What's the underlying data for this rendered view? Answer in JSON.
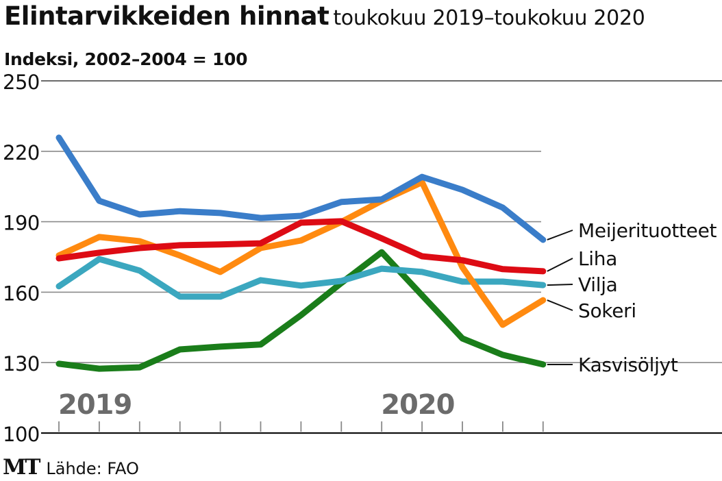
{
  "header": {
    "title": "Elintarvikkeiden hinnat",
    "subtitle": "toukokuu 2019–toukokuu 2020",
    "ylabel": "Indeksi, 2002–2004 = 100"
  },
  "footer": {
    "logo": "MT",
    "source": "Lähde: FAO"
  },
  "chart_data": {
    "type": "line",
    "title": "Elintarvikkeiden hinnat",
    "subtitle": "toukokuu 2019–toukokuu 2020",
    "xlabel": "",
    "ylabel": "Indeksi, 2002–2004 = 100",
    "x": [
      "2019-05",
      "2019-06",
      "2019-07",
      "2019-08",
      "2019-09",
      "2019-10",
      "2019-11",
      "2019-12",
      "2020-01",
      "2020-02",
      "2020-03",
      "2020-04",
      "2020-05"
    ],
    "year_labels": [
      {
        "label": "2019",
        "at": "2019-05"
      },
      {
        "label": "2020",
        "at": "2020-01"
      }
    ],
    "ylim": [
      100,
      250
    ],
    "yticks": [
      100,
      130,
      160,
      190,
      220,
      250
    ],
    "grid": true,
    "legend_placement": "right (labels at line ends)",
    "series": [
      {
        "name": "Meijerituotteet",
        "color": "#3a7dc9",
        "values": [
          225.8,
          198.9,
          193.1,
          194.5,
          193.7,
          191.6,
          192.5,
          198.4,
          199.5,
          209.1,
          203.6,
          196.0,
          182.3
        ]
      },
      {
        "name": "Liha",
        "color": "#dd0b14",
        "values": [
          174.4,
          176.8,
          178.8,
          180.0,
          180.3,
          180.8,
          189.6,
          190.2,
          182.9,
          175.3,
          173.6,
          169.8,
          168.9
        ]
      },
      {
        "name": "Vilja",
        "color": "#3ba7bf",
        "values": [
          162.5,
          174.1,
          169.2,
          158.1,
          158.1,
          165.1,
          162.8,
          164.8,
          170.0,
          168.6,
          164.5,
          164.5,
          163.0
        ]
      },
      {
        "name": "Sokeri",
        "color": "#ff8a10",
        "values": [
          175.6,
          183.5,
          181.7,
          175.6,
          168.6,
          178.8,
          182.0,
          189.9,
          198.9,
          206.8,
          170.6,
          146.1,
          156.6
        ]
      },
      {
        "name": "Kasvisöljyt",
        "color": "#1a7d1a",
        "values": [
          129.5,
          127.4,
          128.0,
          135.6,
          136.8,
          137.7,
          150.2,
          163.9,
          177.0,
          158.7,
          140.3,
          133.3,
          129.2
        ]
      }
    ]
  }
}
